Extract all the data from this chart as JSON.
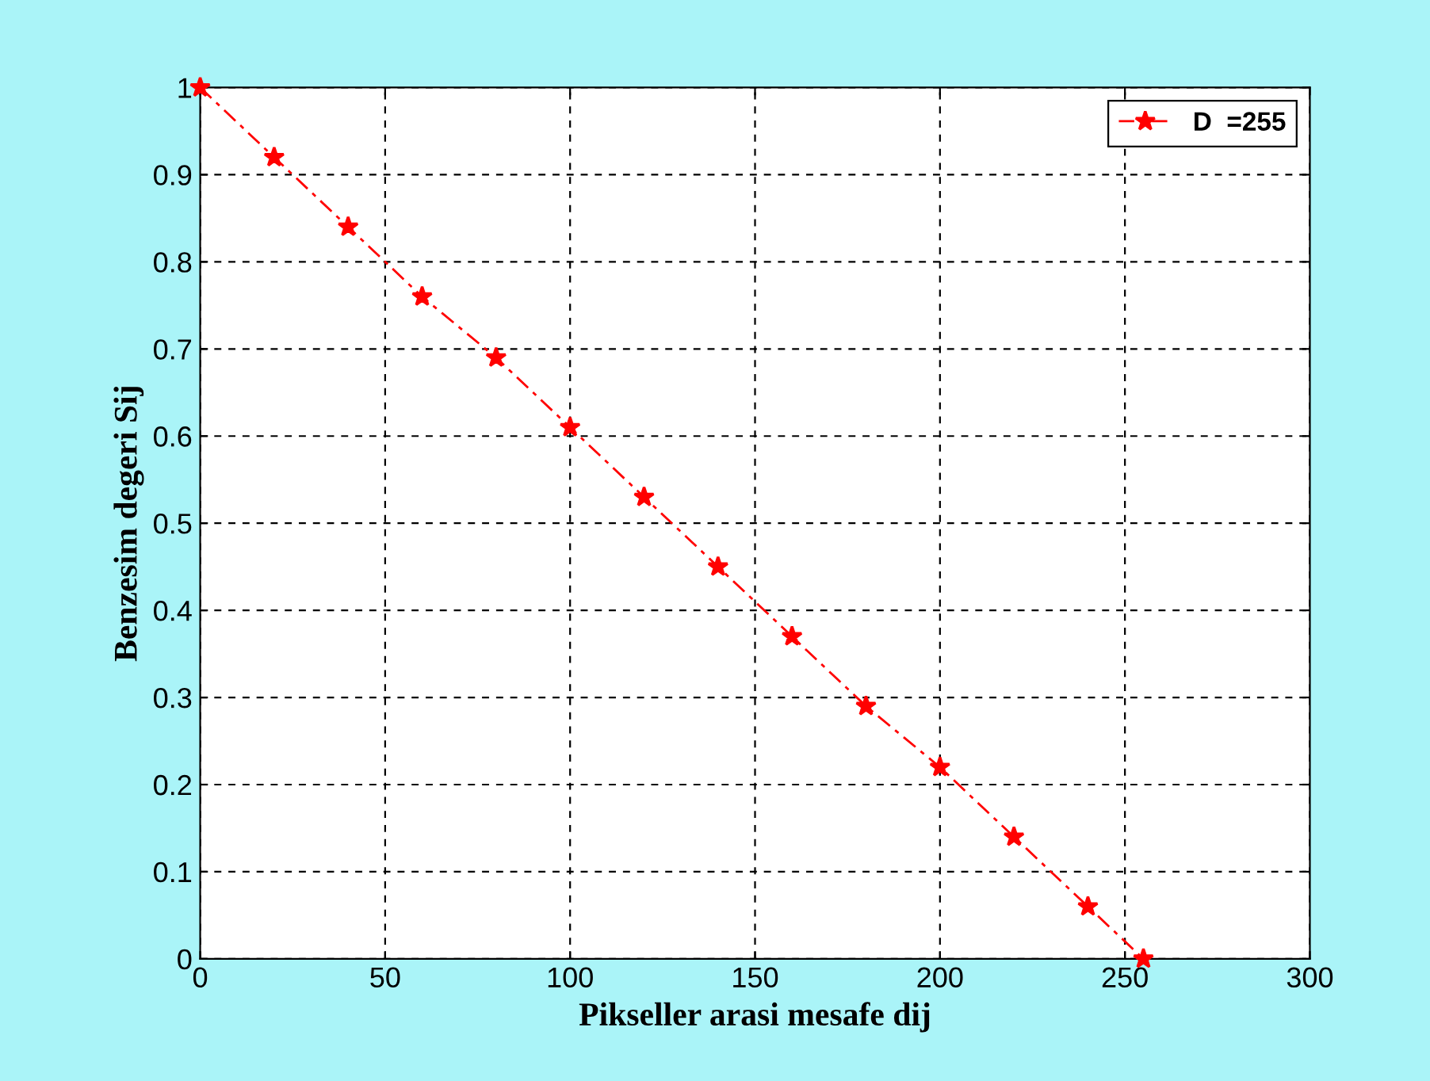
{
  "chart_data": {
    "type": "line",
    "xlabel": "Pikseller arasi mesafe dij",
    "ylabel": "Benzesim degeri Sij",
    "series": [
      {
        "name": "D  =255",
        "color": "#ff0000",
        "x": [
          0,
          20,
          40,
          60,
          80,
          100,
          120,
          140,
          160,
          180,
          200,
          220,
          240,
          255
        ],
        "values": [
          1,
          0.92,
          0.84,
          0.76,
          0.69,
          0.61,
          0.53,
          0.45,
          0.37,
          0.29,
          0.22,
          0.14,
          0.06,
          0
        ]
      }
    ],
    "xlim": [
      0,
      300
    ],
    "xticks": [
      0,
      50,
      100,
      150,
      200,
      250,
      300
    ],
    "ylim": [
      0,
      1
    ],
    "yticks": [
      0,
      0.1,
      0.2,
      0.3,
      0.4,
      0.5,
      0.6,
      0.7,
      0.8,
      0.9,
      1
    ],
    "grid": true,
    "legend": "top right",
    "marker": "star",
    "line_style": "dashed"
  }
}
